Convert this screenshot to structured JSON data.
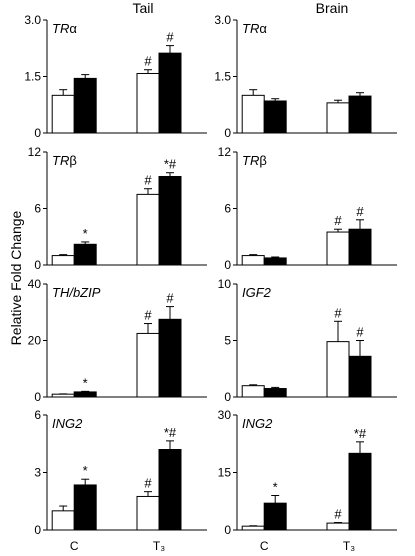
{
  "column_titles": [
    "Tail",
    "Brain"
  ],
  "ylabel": "Relative Fold Change",
  "x_categories": [
    "C",
    "T₃"
  ],
  "chart_data": [
    {
      "type": "bar",
      "column": "Tail",
      "gene": "TRα",
      "gene_italic_part": "TR",
      "gene_plain_part": "α",
      "ylim": [
        0,
        3.0
      ],
      "yticks": [
        "0",
        "1.5",
        "3.0"
      ],
      "categories": [
        "C",
        "T₃"
      ],
      "series": [
        {
          "fill": "open",
          "color": "#ffffff",
          "values": [
            1.0,
            1.58
          ],
          "errors": [
            0.15,
            0.1
          ],
          "marks": [
            "",
            "#"
          ]
        },
        {
          "fill": "solid",
          "color": "#000000",
          "values": [
            1.45,
            2.12
          ],
          "errors": [
            0.1,
            0.2
          ],
          "marks": [
            "",
            "#"
          ]
        }
      ]
    },
    {
      "type": "bar",
      "column": "Brain",
      "gene": "TRα",
      "gene_italic_part": "TR",
      "gene_plain_part": "α",
      "ylim": [
        0,
        3.0
      ],
      "yticks": [
        "0",
        "1.5",
        "3.0"
      ],
      "categories": [
        "C",
        "T₃"
      ],
      "series": [
        {
          "fill": "open",
          "color": "#ffffff",
          "values": [
            1.0,
            0.8
          ],
          "errors": [
            0.15,
            0.07
          ],
          "marks": [
            "",
            ""
          ]
        },
        {
          "fill": "solid",
          "color": "#000000",
          "values": [
            0.85,
            0.98
          ],
          "errors": [
            0.06,
            0.09
          ],
          "marks": [
            "",
            ""
          ]
        }
      ]
    },
    {
      "type": "bar",
      "column": "Tail",
      "gene": "TRβ",
      "gene_italic_part": "TR",
      "gene_plain_part": "β",
      "ylim": [
        0,
        12
      ],
      "yticks": [
        "0",
        "6",
        "12"
      ],
      "categories": [
        "C",
        "T₃"
      ],
      "series": [
        {
          "fill": "open",
          "color": "#ffffff",
          "values": [
            1.0,
            7.5
          ],
          "errors": [
            0.1,
            0.6
          ],
          "marks": [
            "",
            "#"
          ]
        },
        {
          "fill": "solid",
          "color": "#000000",
          "values": [
            2.2,
            9.4
          ],
          "errors": [
            0.25,
            0.4
          ],
          "marks": [
            "*",
            "*#"
          ]
        }
      ]
    },
    {
      "type": "bar",
      "column": "Brain",
      "gene": "TRβ",
      "gene_italic_part": "TR",
      "gene_plain_part": "β",
      "ylim": [
        0,
        12
      ],
      "yticks": [
        "0",
        "6",
        "12"
      ],
      "categories": [
        "C",
        "T₃"
      ],
      "series": [
        {
          "fill": "open",
          "color": "#ffffff",
          "values": [
            1.0,
            3.5
          ],
          "errors": [
            0.1,
            0.3
          ],
          "marks": [
            "",
            "#"
          ]
        },
        {
          "fill": "solid",
          "color": "#000000",
          "values": [
            0.75,
            3.8
          ],
          "errors": [
            0.1,
            1.0
          ],
          "marks": [
            "",
            "#"
          ]
        }
      ]
    },
    {
      "type": "bar",
      "column": "Tail",
      "gene": "TH/bZIP",
      "gene_italic_part": "TH/bZIP",
      "gene_plain_part": "",
      "ylim": [
        0,
        40
      ],
      "yticks": [
        "0",
        "20",
        "40"
      ],
      "categories": [
        "C",
        "T₃"
      ],
      "series": [
        {
          "fill": "open",
          "color": "#ffffff",
          "values": [
            1.0,
            22.5
          ],
          "errors": [
            0.1,
            3.5
          ],
          "marks": [
            "",
            "#"
          ]
        },
        {
          "fill": "solid",
          "color": "#000000",
          "values": [
            1.8,
            27.5
          ],
          "errors": [
            0.2,
            4.5
          ],
          "marks": [
            "*",
            "#"
          ]
        }
      ]
    },
    {
      "type": "bar",
      "column": "Brain",
      "gene": "IGF2",
      "gene_italic_part": "IGF2",
      "gene_plain_part": "",
      "ylim": [
        0,
        10
      ],
      "yticks": [
        "0",
        "5",
        "10"
      ],
      "categories": [
        "C",
        "T₃"
      ],
      "series": [
        {
          "fill": "open",
          "color": "#ffffff",
          "values": [
            1.0,
            4.9
          ],
          "errors": [
            0.08,
            1.8
          ],
          "marks": [
            "",
            "#"
          ]
        },
        {
          "fill": "solid",
          "color": "#000000",
          "values": [
            0.75,
            3.6
          ],
          "errors": [
            0.1,
            1.4
          ],
          "marks": [
            "",
            "#"
          ]
        }
      ]
    },
    {
      "type": "bar",
      "column": "Tail",
      "gene": "ING2",
      "gene_italic_part": "ING2",
      "gene_plain_part": "",
      "ylim": [
        0,
        6
      ],
      "yticks": [
        "0",
        "3",
        "6"
      ],
      "categories": [
        "C",
        "T₃"
      ],
      "series": [
        {
          "fill": "open",
          "color": "#ffffff",
          "values": [
            1.0,
            1.75
          ],
          "errors": [
            0.25,
            0.25
          ],
          "marks": [
            "",
            "#"
          ]
        },
        {
          "fill": "solid",
          "color": "#000000",
          "values": [
            2.35,
            4.2
          ],
          "errors": [
            0.3,
            0.45
          ],
          "marks": [
            "*",
            "*#"
          ]
        }
      ]
    },
    {
      "type": "bar",
      "column": "Brain",
      "gene": "ING2",
      "gene_italic_part": "ING2",
      "gene_plain_part": "",
      "ylim": [
        0,
        30
      ],
      "yticks": [
        "0",
        "15",
        "30"
      ],
      "categories": [
        "C",
        "T₃"
      ],
      "series": [
        {
          "fill": "open",
          "color": "#ffffff",
          "values": [
            1.0,
            1.8
          ],
          "errors": [
            0.1,
            0.15
          ],
          "marks": [
            "",
            "#"
          ]
        },
        {
          "fill": "solid",
          "color": "#000000",
          "values": [
            7.0,
            20.0
          ],
          "errors": [
            2.0,
            3.0
          ],
          "marks": [
            "*",
            "*#"
          ]
        }
      ]
    }
  ]
}
